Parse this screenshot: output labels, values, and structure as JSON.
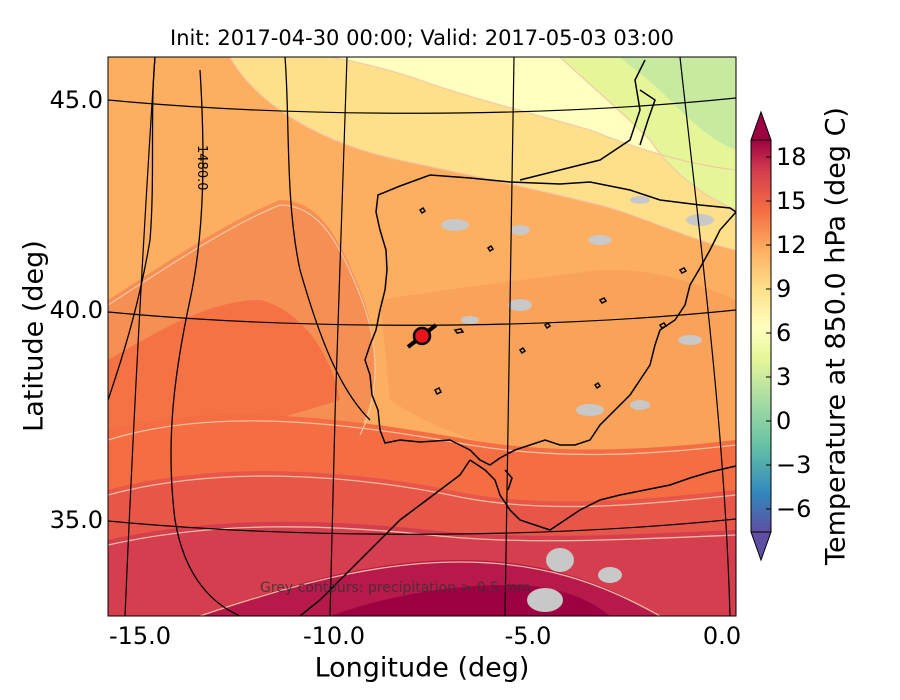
{
  "title": "Init: 2017-04-30 00:00; Valid: 2017-05-03 03:00",
  "chart_data": {
    "type": "map",
    "xlabel": "Longitude (deg)",
    "ylabel": "Latitude (deg)",
    "colorbar_label": "Temperature at 850.0 hPa (deg C)",
    "x_ticks": [
      "-15.0",
      "-10.0",
      "-5.0",
      "0.0"
    ],
    "y_ticks": [
      "45.0",
      "40.0",
      "35.0"
    ],
    "colorbar_ticks": [
      "18",
      "15",
      "12",
      "9",
      "6",
      "3",
      "0",
      "−3",
      "−6"
    ],
    "xlim": [
      -16,
      0.1
    ],
    "ylim": [
      32.8,
      46
    ],
    "colorbar_range": [
      -8,
      20
    ],
    "colormap": "Spectral_r",
    "contour_label": "1480.0",
    "footnote": "Grey contours: precipitation > 0.5 mm",
    "marker": {
      "lon": -7.6,
      "lat": 39.3,
      "color": "#e8151b"
    }
  },
  "colors": {
    "warm_south": "#9e0142",
    "red": "#d53e4f",
    "orange_red": "#f46d43",
    "orange": "#fdae61",
    "yellow": "#fee08b",
    "pale_yellow": "#ffffbf",
    "pale_green": "#e6f598",
    "green": "#abdda4",
    "teal": "#66c2a5",
    "blue": "#3288bd",
    "purple": "#5e4fa2",
    "precip_grey": "#c8c8c8"
  }
}
